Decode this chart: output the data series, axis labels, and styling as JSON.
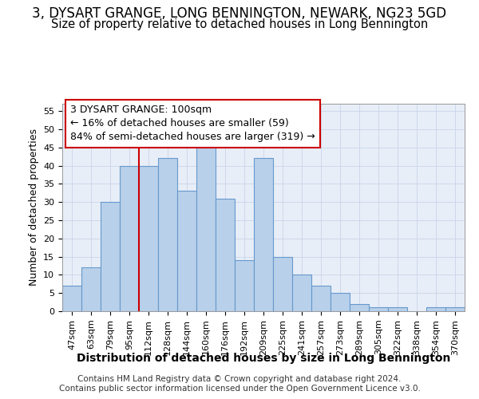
{
  "title1": "3, DYSART GRANGE, LONG BENNINGTON, NEWARK, NG23 5GD",
  "title2": "Size of property relative to detached houses in Long Bennington",
  "xlabel": "Distribution of detached houses by size in Long Bennington",
  "ylabel": "Number of detached properties",
  "footer1": "Contains HM Land Registry data © Crown copyright and database right 2024.",
  "footer2": "Contains public sector information licensed under the Open Government Licence v3.0.",
  "annotation_line1": "3 DYSART GRANGE: 100sqm",
  "annotation_line2": "← 16% of detached houses are smaller (59)",
  "annotation_line3": "84% of semi-detached houses are larger (319) →",
  "bar_labels": [
    "47sqm",
    "63sqm",
    "79sqm",
    "95sqm",
    "112sqm",
    "128sqm",
    "144sqm",
    "160sqm",
    "176sqm",
    "192sqm",
    "209sqm",
    "225sqm",
    "241sqm",
    "257sqm",
    "273sqm",
    "289sqm",
    "305sqm",
    "322sqm",
    "338sqm",
    "354sqm",
    "370sqm"
  ],
  "bar_values": [
    7,
    12,
    30,
    40,
    40,
    42,
    33,
    46,
    31,
    14,
    42,
    15,
    10,
    7,
    5,
    2,
    1,
    1,
    0,
    1,
    1
  ],
  "bar_color": "#b8d0ea",
  "bar_edge_color": "#6699cc",
  "vline_x": 3.5,
  "vline_color": "#cc0000",
  "annotation_box_edge": "#cc0000",
  "ylim": [
    0,
    57
  ],
  "yticks": [
    0,
    5,
    10,
    15,
    20,
    25,
    30,
    35,
    40,
    45,
    50,
    55
  ],
  "grid_color": "#c8d4e8",
  "bg_color": "#ffffff",
  "plot_bg_color": "#e8eef8",
  "title1_fontsize": 12,
  "title2_fontsize": 10.5,
  "xlabel_fontsize": 10,
  "ylabel_fontsize": 9,
  "tick_fontsize": 8,
  "footer_fontsize": 7.5,
  "annot_fontsize": 9
}
